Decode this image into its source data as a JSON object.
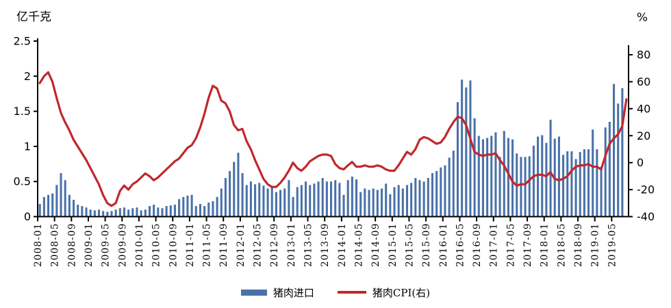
{
  "legend": {
    "items": [
      {
        "label": "猪肉进口",
        "type": "bar",
        "color": "#4a72a8"
      },
      {
        "label": "猪肉CPI(右)",
        "type": "line",
        "color": "#c2272d"
      }
    ]
  },
  "chart_data": {
    "type": "bar+line combo, monthly 2008-01 to 2019-08",
    "title": "",
    "left_axis": {
      "label": "亿千克",
      "min": 0,
      "max": 2.5,
      "ticks": [
        "2.5",
        "2",
        "1.5",
        "1",
        "0.5",
        "0"
      ]
    },
    "right_axis": {
      "label": "%",
      "min": -40,
      "max": 80,
      "ticks": [
        "80",
        "60",
        "40",
        "20",
        "0",
        "-20",
        "-40"
      ]
    },
    "grid": "off",
    "legend_position": "bottom-center",
    "months_count": 140,
    "x_start": "2008-01",
    "x_tick_step_months": 4,
    "x_tick_labels": [
      "2008-01",
      "2008-05",
      "2008-09",
      "2009-01",
      "2009-05",
      "2009-09",
      "2010-01",
      "2010-05",
      "2010-09",
      "2011-01",
      "2011-05",
      "2011-09",
      "2012-01",
      "2012-05",
      "2012-09",
      "2013-01",
      "2013-05",
      "2013-09",
      "2014-01",
      "2014-05",
      "2014-09",
      "2015-01",
      "2015-05",
      "2015-09",
      "2016-01",
      "2016-05",
      "2016-09",
      "2017-01",
      "2017-05",
      "2017-09",
      "2018-01",
      "2018-05",
      "2018-09",
      "2019-01",
      "2019-05"
    ],
    "series": [
      {
        "name": "猪肉进口",
        "type": "bar",
        "axis": "left",
        "color": "#4a72a8",
        "values": [
          0.18,
          0.28,
          0.31,
          0.33,
          0.45,
          0.62,
          0.52,
          0.31,
          0.24,
          0.17,
          0.15,
          0.13,
          0.1,
          0.09,
          0.1,
          0.08,
          0.07,
          0.08,
          0.1,
          0.12,
          0.13,
          0.1,
          0.12,
          0.13,
          0.09,
          0.1,
          0.15,
          0.17,
          0.13,
          0.12,
          0.15,
          0.16,
          0.17,
          0.25,
          0.28,
          0.3,
          0.31,
          0.15,
          0.18,
          0.15,
          0.2,
          0.22,
          0.28,
          0.4,
          0.55,
          0.65,
          0.78,
          0.91,
          0.62,
          0.45,
          0.5,
          0.46,
          0.48,
          0.44,
          0.4,
          0.42,
          0.35,
          0.38,
          0.4,
          0.52,
          0.28,
          0.42,
          0.45,
          0.5,
          0.45,
          0.47,
          0.5,
          0.55,
          0.5,
          0.5,
          0.52,
          0.48,
          0.31,
          0.52,
          0.57,
          0.53,
          0.35,
          0.4,
          0.38,
          0.4,
          0.38,
          0.4,
          0.47,
          0.32,
          0.42,
          0.45,
          0.4,
          0.45,
          0.48,
          0.55,
          0.52,
          0.5,
          0.55,
          0.62,
          0.65,
          0.7,
          0.73,
          0.84,
          0.94,
          1.63,
          1.95,
          1.84,
          1.94,
          1.4,
          1.15,
          1.1,
          1.12,
          1.15,
          1.2,
          0.85,
          1.22,
          1.12,
          1.1,
          0.9,
          0.85,
          0.85,
          0.86,
          1.01,
          1.14,
          1.16,
          1.05,
          1.38,
          1.11,
          1.14,
          0.88,
          0.93,
          0.93,
          0.82,
          0.92,
          0.96,
          0.96,
          1.24,
          0.96,
          0.71,
          1.27,
          1.35,
          1.89,
          1.61,
          1.83,
          null
        ]
      },
      {
        "name": "猪肉CPI(右)",
        "type": "line",
        "axis": "right",
        "color": "#c2272d",
        "values": [
          59,
          64,
          67,
          60,
          48,
          37,
          30,
          24,
          17,
          12,
          7,
          2,
          -4,
          -10,
          -16,
          -24,
          -30,
          -32,
          -30,
          -21,
          -17,
          -20,
          -16,
          -14,
          -11,
          -8,
          -10,
          -13,
          -11,
          -8,
          -5,
          -2,
          1,
          3,
          7,
          11,
          13,
          18,
          26,
          36,
          48,
          57,
          55,
          46,
          44,
          38,
          28,
          24,
          25,
          16,
          10,
          2,
          -5,
          -12,
          -16,
          -18,
          -18,
          -15,
          -11,
          -6,
          0,
          -4,
          -6,
          -3,
          1,
          3,
          5,
          6,
          6,
          5,
          -1,
          -4,
          -5,
          -2,
          0.5,
          -3,
          -3,
          -2,
          -3,
          -3,
          -2,
          -3,
          -5,
          -6,
          -6,
          -2,
          3,
          8,
          6,
          10,
          17,
          19,
          18,
          16,
          14,
          15,
          19,
          25,
          30,
          34,
          33,
          28,
          18,
          8,
          6,
          5,
          6,
          6,
          7,
          2,
          -2,
          -8,
          -14,
          -17,
          -16,
          -16,
          -13,
          -10,
          -9,
          -9,
          -10,
          -7,
          -12,
          -13,
          -12,
          -10,
          -6,
          -3,
          -2,
          -2,
          -1,
          -3,
          -3,
          -5,
          5,
          14,
          18,
          21,
          27,
          47
        ]
      }
    ]
  }
}
